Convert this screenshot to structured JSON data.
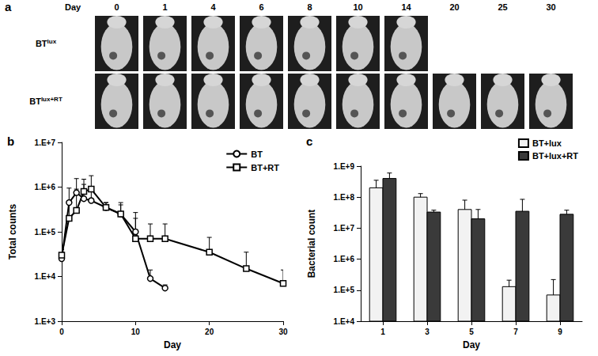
{
  "image_panel": {
    "panel": "a",
    "header": "Day",
    "days": [
      0,
      1,
      4,
      6,
      8,
      10,
      14,
      20,
      25,
      30
    ],
    "rows": [
      {
        "label": "BT",
        "label_sup": "lux",
        "days_imaged": [
          0,
          1,
          4,
          6,
          8,
          10,
          14
        ]
      },
      {
        "label": "BT",
        "label_sup": "lux+RT",
        "days_imaged": [
          0,
          1,
          4,
          6,
          8,
          10,
          14,
          20,
          25,
          30
        ]
      }
    ]
  },
  "chart_data": [
    {
      "panel": "b",
      "type": "line",
      "x_label": "Day",
      "y_label": "Total counts",
      "xlim": [
        0,
        30
      ],
      "xticks": [
        0,
        10,
        20,
        30
      ],
      "ylim": [
        1000,
        10000000
      ],
      "yticks": [
        {
          "value": 1000,
          "label": "1.E+3"
        },
        {
          "value": 10000,
          "label": "1.E+4"
        },
        {
          "value": 100000,
          "label": "1.E+5"
        },
        {
          "value": 1000000,
          "label": "1.E+6"
        },
        {
          "value": 10000000,
          "label": "1.E+7"
        }
      ],
      "log": "y",
      "grid": false,
      "legend": "top right",
      "series": [
        {
          "name": "BT",
          "color": "#000000",
          "marker": "circle",
          "x": [
            0,
            1,
            2,
            3,
            4,
            6,
            8,
            10,
            12,
            14
          ],
          "values": [
            25000,
            450000,
            750000,
            550000,
            500000,
            350000,
            250000,
            100000,
            9000,
            5500
          ],
          "errors": [
            10000,
            500000,
            800000,
            600000,
            500000,
            100000,
            150000,
            100000,
            5000,
            1000
          ]
        },
        {
          "name": "BT+RT",
          "color": "#000000",
          "marker": "square",
          "x": [
            0,
            1,
            2,
            3,
            4,
            6,
            8,
            10,
            12,
            14,
            20,
            25,
            30
          ],
          "values": [
            30000,
            200000,
            300000,
            800000,
            900000,
            350000,
            250000,
            70000,
            70000,
            70000,
            35000,
            15000,
            7000
          ],
          "errors": [
            10000,
            300000,
            600000,
            700000,
            900000,
            100000,
            200000,
            200000,
            80000,
            80000,
            40000,
            20000,
            7000
          ]
        }
      ]
    },
    {
      "panel": "c",
      "type": "bar",
      "x_label": "Day",
      "y_label": "Bacterial count",
      "categories": [
        "1",
        "3",
        "5",
        "7",
        "9"
      ],
      "ylim": [
        10000,
        1000000000
      ],
      "yticks": [
        {
          "value": 10000,
          "label": "1.E+4"
        },
        {
          "value": 100000,
          "label": "1.E+5"
        },
        {
          "value": 1000000,
          "label": "1.E+6"
        },
        {
          "value": 10000000,
          "label": "1.E+7"
        },
        {
          "value": 100000000,
          "label": "1.E+8"
        },
        {
          "value": 1000000000,
          "label": "1.E+9"
        }
      ],
      "log": "y",
      "grid": false,
      "legend": "top right",
      "series": [
        {
          "name": "BT+lux",
          "color": "#f2f2f2",
          "values": [
            200000000,
            100000000,
            40000000,
            130000,
            70000
          ],
          "errors": [
            150000000,
            30000000,
            40000000,
            80000,
            150000
          ]
        },
        {
          "name": "BT+lux+RT",
          "color": "#3a3a3a",
          "values": [
            400000000,
            33000000,
            20000000,
            35000000,
            28000000
          ],
          "errors": [
            200000000,
            5000000,
            20000000,
            50000000,
            10000000
          ]
        }
      ]
    }
  ]
}
